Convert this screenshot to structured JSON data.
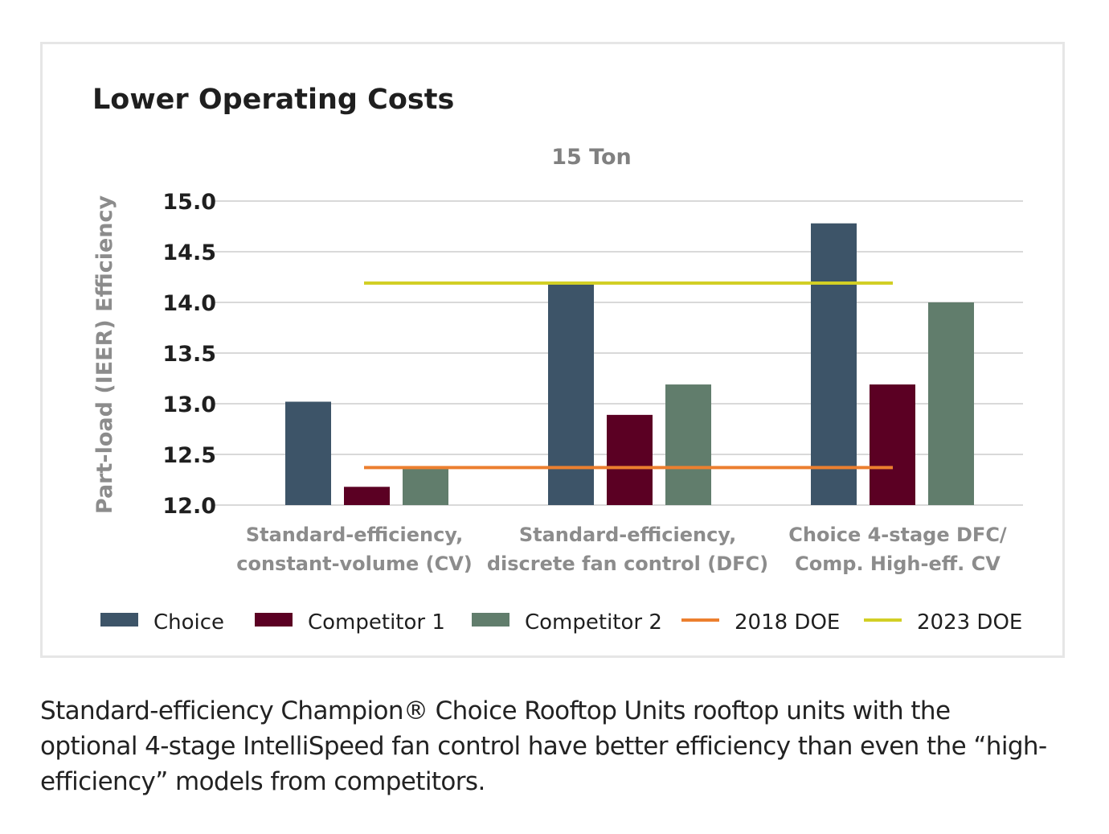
{
  "chart_data": {
    "type": "bar",
    "title": "Lower Operating Costs",
    "subtitle": "15 Ton",
    "ylabel": "Part-load (IEER) Efficiency",
    "xlabel": "",
    "ylim": [
      12.0,
      15.0
    ],
    "yticks": [
      {
        "value": 12.0,
        "label": "12.0"
      },
      {
        "value": 12.5,
        "label": "12.5"
      },
      {
        "value": 13.0,
        "label": "13.0"
      },
      {
        "value": 13.5,
        "label": "13.5"
      },
      {
        "value": 14.0,
        "label": "14.0"
      },
      {
        "value": 14.5,
        "label": "14.5"
      },
      {
        "value": 15.0,
        "label": "15.0"
      }
    ],
    "grid": true,
    "legend_position": "bottom",
    "categories": [
      [
        "Standard-efficiency,",
        "constant-volume (CV)"
      ],
      [
        "Standard-efficiency,",
        "discrete fan control (DFC)"
      ],
      [
        "Choice 4-stage DFC/",
        "Comp. High-eff. CV"
      ]
    ],
    "series": [
      {
        "name": "Choice",
        "color": "#3d5468",
        "values": [
          13.02,
          14.18,
          14.78
        ]
      },
      {
        "name": "Competitor 1",
        "color": "#5b0023",
        "values": [
          12.18,
          12.89,
          13.19
        ]
      },
      {
        "name": "Competitor 2",
        "color": "#617d6c",
        "values": [
          12.37,
          13.19,
          14.0
        ]
      }
    ],
    "reference_lines": [
      {
        "name": "2018 DOE",
        "color": "#ec7f2f",
        "value": 12.37
      },
      {
        "name": "2023 DOE",
        "color": "#d2cf25",
        "value": 14.19
      }
    ],
    "colors": {
      "title": "#1f1f1f",
      "subtitle": "#808080",
      "axis_label": "#8c8c8c",
      "tick_label": "#1f1f1f",
      "category_label": "#8c8c8c",
      "legend_label": "#1f1f1f",
      "grid": "#d9d9d9"
    }
  },
  "caption": "Standard-efficiency Champion® Choice Rooftop Units rooftop units with the optional 4-stage IntelliSpeed fan control have better efficiency than even the “high-efficiency” models from competitors."
}
